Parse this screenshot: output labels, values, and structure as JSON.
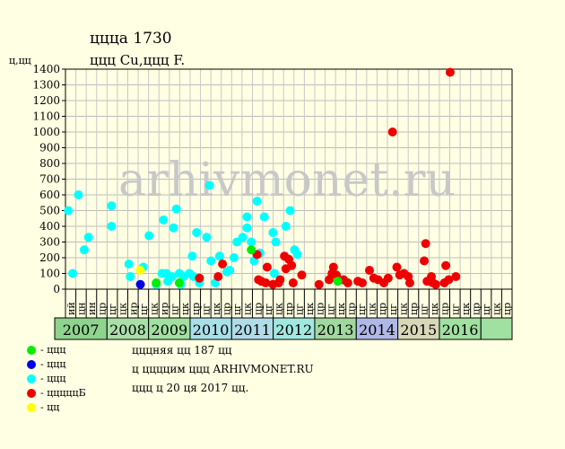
{
  "header": {
    "title": "ццца 1730",
    "subtitle": "ццц Cu,ццц F.",
    "y_unit": "ц,цц"
  },
  "watermark": "arhivmonet.ru",
  "info_lines": [
    "цццняя цц 187 цц",
    "ц ццццим ццц ARHIVMONET.RU",
    "ццц ц 20 ця 2017 цц."
  ],
  "legend": [
    {
      "label": "- ццц",
      "color": "#00EE00"
    },
    {
      "label": "- ццц",
      "color": "#0000EE"
    },
    {
      "label": "- ццц",
      "color": "#00FFFF"
    },
    {
      "label": "- цццццБ",
      "color": "#EE0000"
    },
    {
      "label": "- цц",
      "color": "#FFFF00"
    }
  ],
  "chart_data": {
    "type": "scatter",
    "ylim": [
      0,
      1400
    ],
    "yticks": [
      0,
      100,
      200,
      300,
      400,
      500,
      600,
      700,
      800,
      900,
      1000,
      1100,
      1200,
      1300,
      1400
    ],
    "grid": true,
    "month_labels": [
      "ий",
      "цн",
      "ин",
      "цр",
      "цг",
      "цк",
      "ир",
      "цг",
      "цк",
      "ир",
      "цг",
      "цк",
      "цр",
      "цг",
      "цк",
      "цр",
      "цг",
      "цк",
      "цр",
      "цг",
      "цк",
      "цр",
      "цг",
      "цк",
      "цр",
      "цг",
      "цк",
      "цр",
      "цг",
      "цк",
      "цр",
      "цг",
      "цк",
      "цр",
      "цг",
      "цк",
      "цр",
      "цг",
      "цк",
      "цр",
      "цг",
      "цк",
      "цр"
    ],
    "years": [
      {
        "label": "2007",
        "start": 0,
        "end": 4,
        "color": "#8ED38E"
      },
      {
        "label": "2008",
        "start": 4,
        "end": 7,
        "color": "#A8E0A8"
      },
      {
        "label": "2009",
        "start": 7,
        "end": 10,
        "color": "#A0E0A0"
      },
      {
        "label": "2010",
        "start": 10,
        "end": 13,
        "color": "#A8E0E8"
      },
      {
        "label": "2011",
        "start": 13,
        "end": 16,
        "color": "#B0DCE8"
      },
      {
        "label": "2012",
        "start": 16,
        "end": 19,
        "color": "#A0E8E0"
      },
      {
        "label": "2013",
        "start": 19,
        "end": 22,
        "color": "#A0D8A0"
      },
      {
        "label": "2014",
        "start": 22,
        "end": 25,
        "color": "#B0B8E8"
      },
      {
        "label": "2015",
        "start": 25,
        "end": 28,
        "color": "#D8D8B8"
      },
      {
        "label": "2016",
        "start": 28,
        "end": 31,
        "color": "#A0E0A0"
      },
      {
        "label": "",
        "start": 31,
        "end": 32,
        "color": "#A0E0A0"
      }
    ],
    "series": [
      {
        "color": "#00FFFF",
        "points": [
          [
            0.2,
            500
          ],
          [
            0.5,
            100
          ],
          [
            0.9,
            600
          ],
          [
            1.3,
            250
          ],
          [
            1.6,
            330
          ],
          [
            3.2,
            530
          ],
          [
            3.2,
            400
          ],
          [
            4.4,
            160
          ],
          [
            4.5,
            80
          ],
          [
            5.4,
            140
          ],
          [
            5.8,
            340
          ],
          [
            6.3,
            30
          ],
          [
            6.7,
            100
          ],
          [
            6.8,
            440
          ],
          [
            7.0,
            100
          ],
          [
            7.1,
            50
          ],
          [
            7.4,
            80
          ],
          [
            7.5,
            390
          ],
          [
            7.7,
            510
          ],
          [
            7.9,
            100
          ],
          [
            8.0,
            30
          ],
          [
            8.2,
            80
          ],
          [
            8.6,
            100
          ],
          [
            8.8,
            210
          ],
          [
            8.9,
            80
          ],
          [
            9.1,
            360
          ],
          [
            9.3,
            40
          ],
          [
            9.8,
            330
          ],
          [
            10.0,
            660
          ],
          [
            10.1,
            180
          ],
          [
            10.4,
            40
          ],
          [
            10.7,
            210
          ],
          [
            11.2,
            110
          ],
          [
            11.4,
            120
          ],
          [
            11.7,
            200
          ],
          [
            11.9,
            300
          ],
          [
            12.3,
            330
          ],
          [
            12.6,
            390
          ],
          [
            12.6,
            460
          ],
          [
            12.9,
            300
          ],
          [
            13.1,
            180
          ],
          [
            13.3,
            560
          ],
          [
            13.5,
            230
          ],
          [
            13.8,
            460
          ],
          [
            14.4,
            360
          ],
          [
            14.6,
            300
          ],
          [
            14.5,
            100
          ],
          [
            15.3,
            400
          ],
          [
            15.6,
            500
          ],
          [
            15.9,
            250
          ],
          [
            16.1,
            220
          ]
        ]
      },
      {
        "color": "#EE0000",
        "points": [
          [
            9.3,
            70
          ],
          [
            10.6,
            80
          ],
          [
            10.9,
            160
          ],
          [
            13.3,
            220
          ],
          [
            13.4,
            60
          ],
          [
            13.6,
            50
          ],
          [
            13.9,
            40
          ],
          [
            14.0,
            140
          ],
          [
            14.4,
            30
          ],
          [
            14.8,
            40
          ],
          [
            14.9,
            60
          ],
          [
            15.2,
            210
          ],
          [
            15.3,
            130
          ],
          [
            15.5,
            190
          ],
          [
            15.7,
            150
          ],
          [
            15.8,
            40
          ],
          [
            16.4,
            90
          ],
          [
            17.6,
            30
          ],
          [
            18.3,
            60
          ],
          [
            18.5,
            100
          ],
          [
            18.6,
            140
          ],
          [
            18.8,
            90
          ],
          [
            19.3,
            60
          ],
          [
            19.6,
            40
          ],
          [
            20.3,
            50
          ],
          [
            20.6,
            40
          ],
          [
            21.1,
            120
          ],
          [
            21.4,
            70
          ],
          [
            21.7,
            60
          ],
          [
            22.1,
            40
          ],
          [
            22.4,
            70
          ],
          [
            22.7,
            1000
          ],
          [
            23.0,
            140
          ],
          [
            23.2,
            90
          ],
          [
            23.5,
            100
          ],
          [
            23.8,
            80
          ],
          [
            23.9,
            40
          ],
          [
            24.9,
            180
          ],
          [
            25.0,
            290
          ],
          [
            25.1,
            50
          ],
          [
            25.4,
            80
          ],
          [
            25.5,
            40
          ],
          [
            25.7,
            30
          ],
          [
            26.3,
            40
          ],
          [
            26.4,
            150
          ],
          [
            26.6,
            60
          ],
          [
            26.7,
            1380
          ],
          [
            27.1,
            80
          ]
        ]
      },
      {
        "color": "#00EE00",
        "points": [
          [
            6.3,
            40
          ],
          [
            7.9,
            40
          ],
          [
            12.9,
            250
          ],
          [
            18.9,
            50
          ]
        ]
      },
      {
        "color": "#0000EE",
        "points": [
          [
            5.2,
            30
          ]
        ]
      },
      {
        "color": "#FFFF00",
        "points": [
          [
            5.2,
            120
          ]
        ]
      }
    ]
  }
}
